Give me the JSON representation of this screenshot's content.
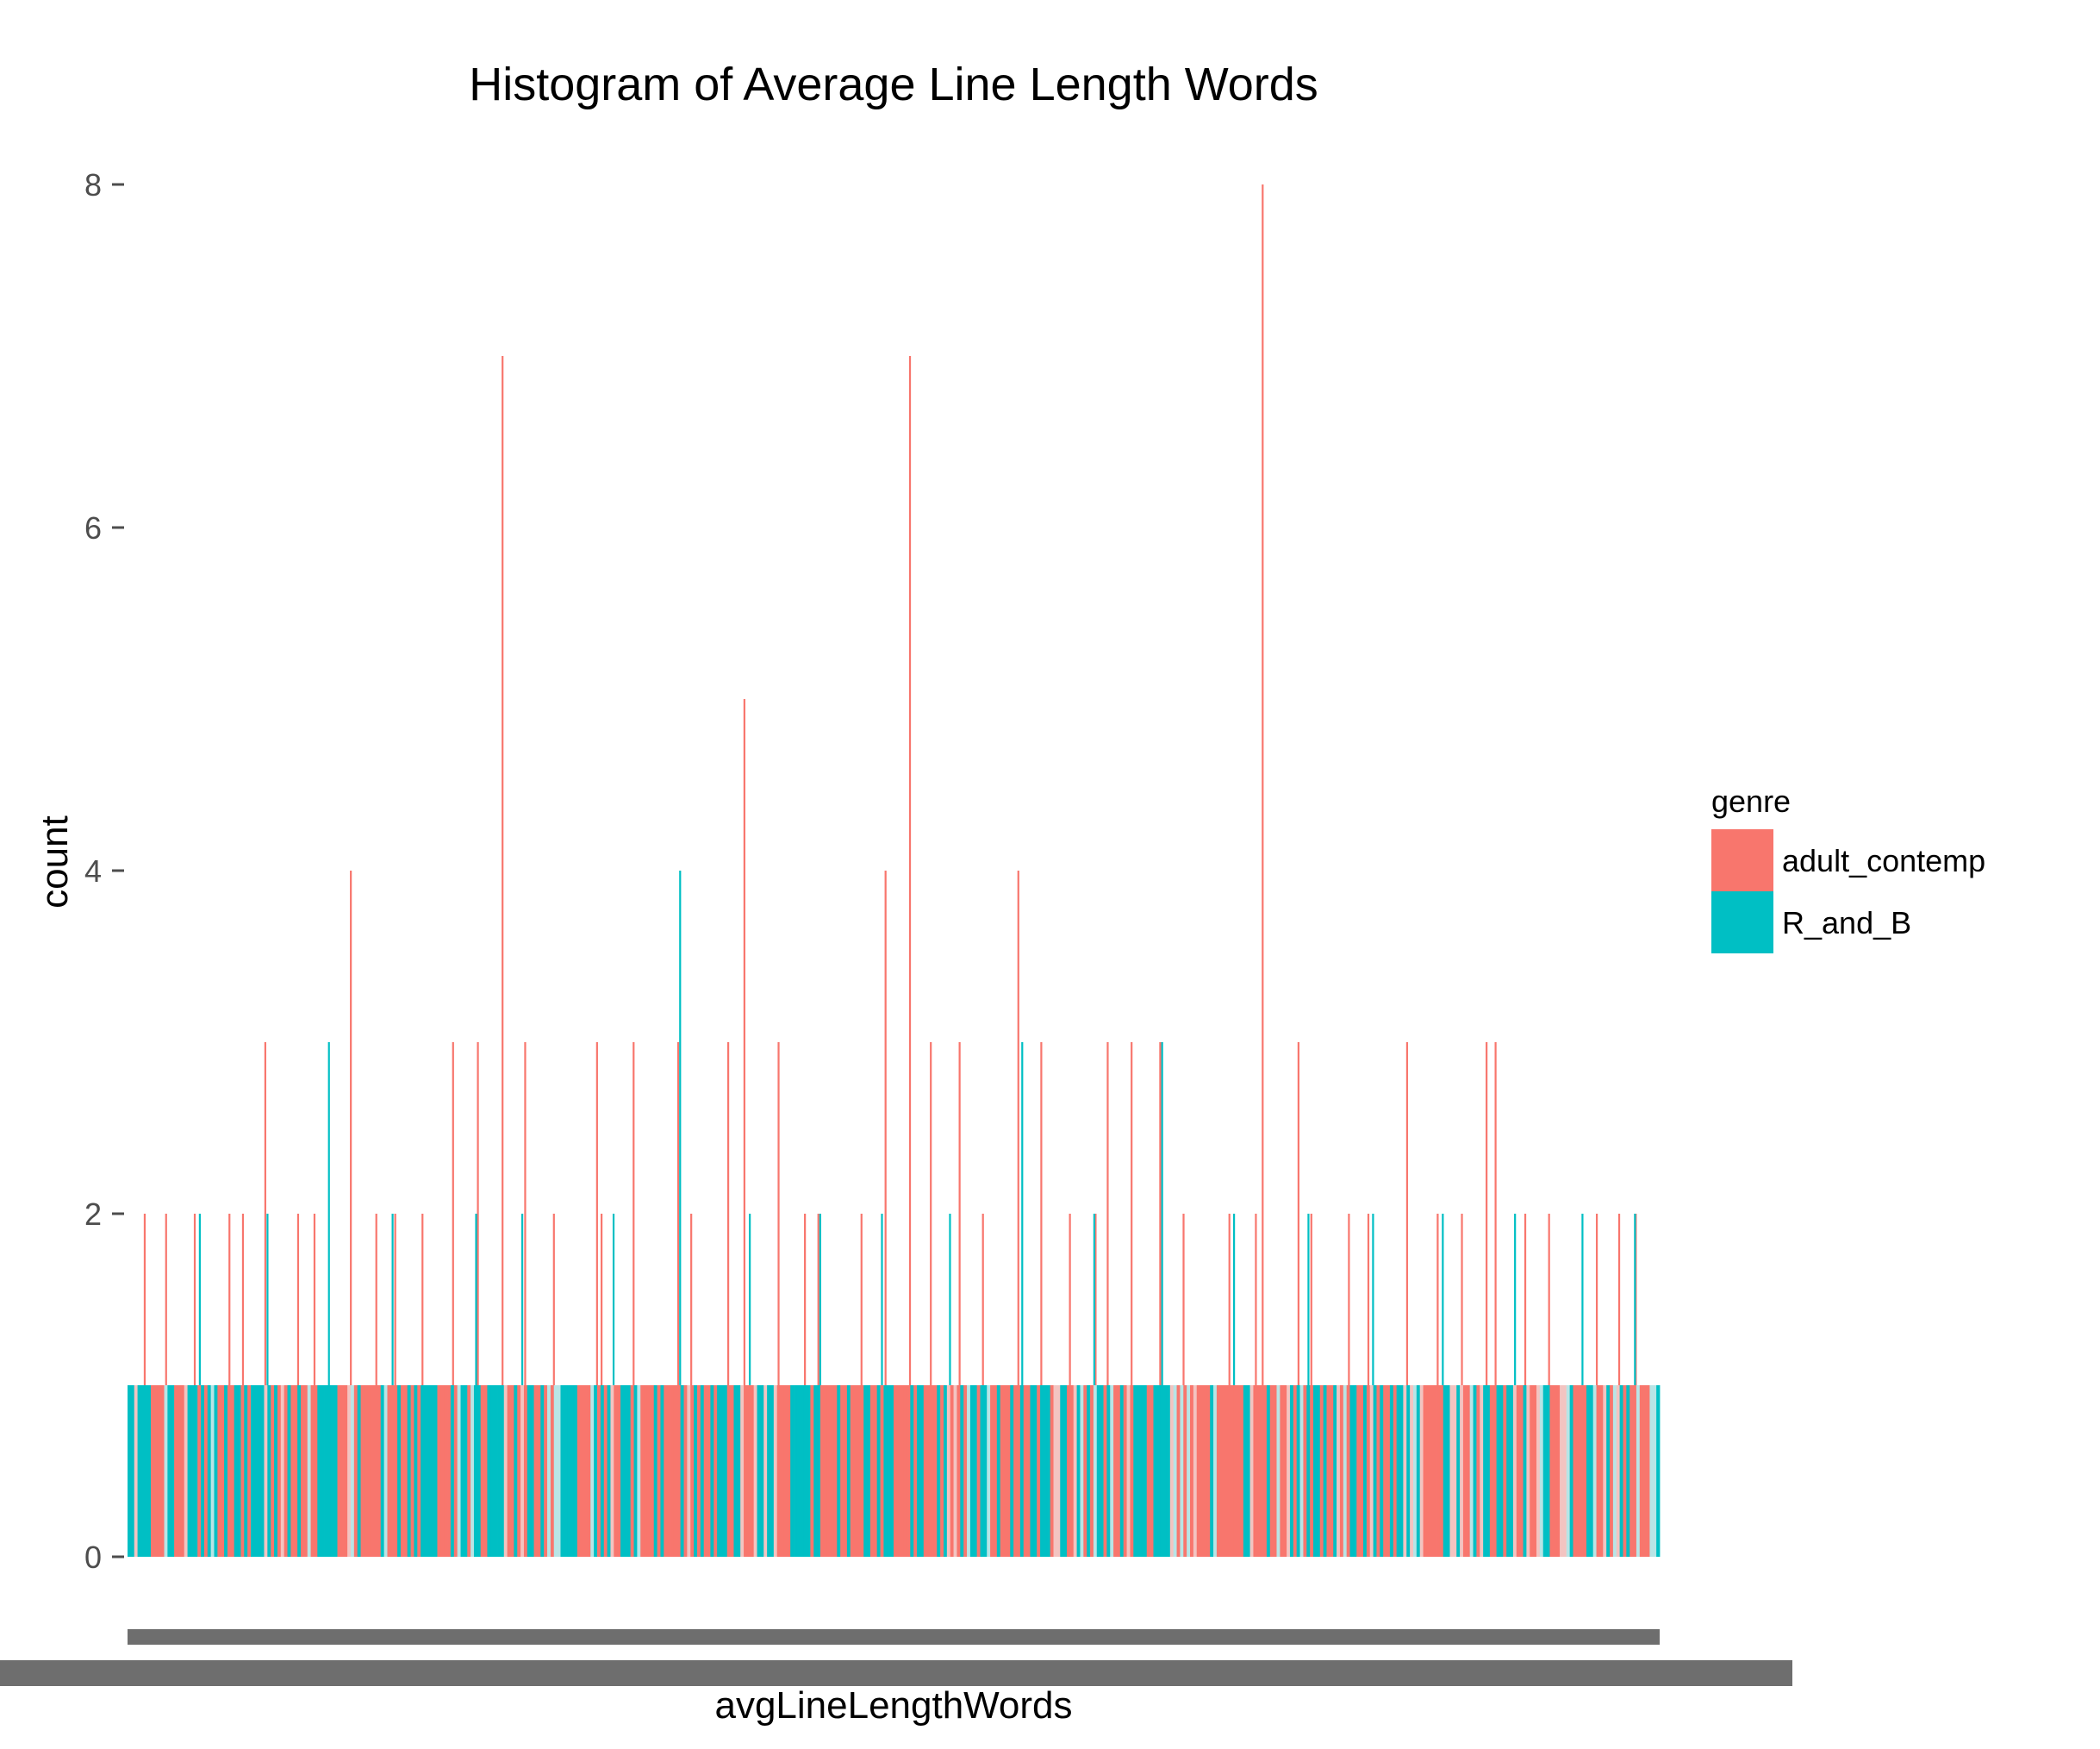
{
  "chart_data": {
    "type": "bar",
    "title": "Histogram of Average Line Length Words",
    "xlabel": "avgLineLengthWords",
    "ylabel": "count",
    "ylim": [
      0,
      8
    ],
    "y_ticks": [
      "0",
      "2",
      "4",
      "6",
      "8"
    ],
    "x_tick_labels_note": "x tick labels are overplotted and illegible",
    "legend": {
      "title": "genre",
      "position": "right",
      "entries": [
        {
          "name": "adult_contemp",
          "color": "#F8766D"
        },
        {
          "name": "R_and_B",
          "color": "#00BFC4"
        }
      ]
    },
    "series": [
      {
        "name": "adult_contemp",
        "color": "#F8766D",
        "peaks": [
          2,
          2,
          2,
          2,
          2,
          3,
          2,
          2,
          4,
          2,
          2,
          2,
          3,
          3,
          7,
          3,
          2,
          3,
          2,
          3,
          3,
          2,
          3,
          5,
          3,
          2,
          2,
          2,
          4,
          7,
          3,
          3,
          2,
          4,
          3,
          2,
          2,
          3,
          3,
          3,
          2,
          2,
          2,
          8,
          3,
          2,
          2,
          2,
          3,
          2,
          2,
          3,
          3,
          2,
          2,
          2,
          2,
          2
        ]
      },
      {
        "name": "R_and_B",
        "color": "#00BFC4",
        "peaks": [
          2,
          2,
          3,
          2,
          2,
          2,
          2,
          4,
          2,
          2,
          2,
          2,
          3,
          2,
          3,
          2,
          2,
          2,
          2,
          2,
          2,
          2
        ]
      }
    ],
    "baseline_count": 1,
    "n_bins": 460
  }
}
